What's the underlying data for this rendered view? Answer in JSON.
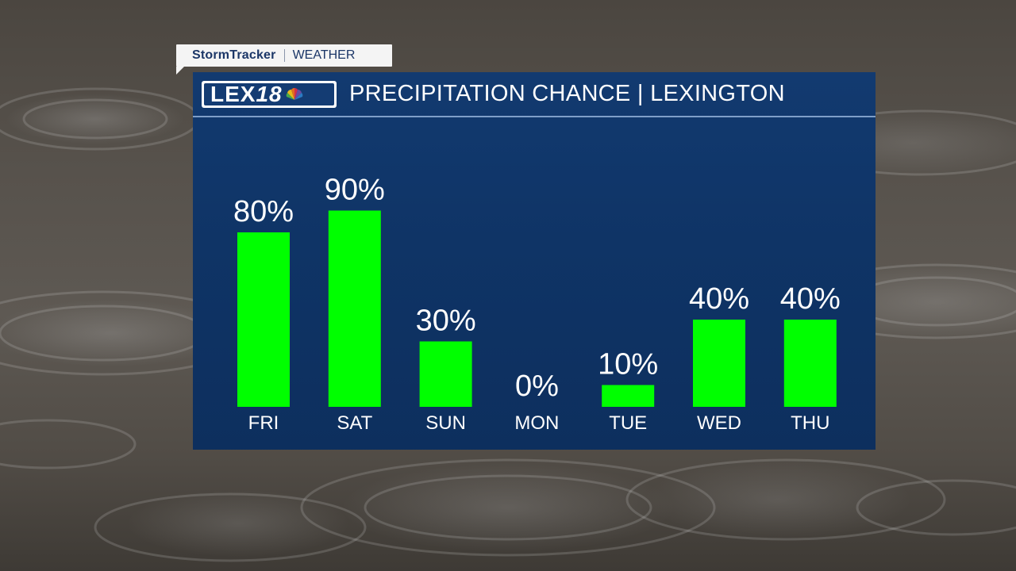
{
  "brand": {
    "name": "StormTracker",
    "section": "WEATHER"
  },
  "logo": {
    "text": "LEX",
    "number": "18"
  },
  "panel": {
    "title": "PRECIPITATION CHANCE | LEXINGTON"
  },
  "chart_data": {
    "type": "bar",
    "title": "PRECIPITATION CHANCE | LEXINGTON",
    "categories": [
      "FRI",
      "SAT",
      "SUN",
      "MON",
      "TUE",
      "WED",
      "THU"
    ],
    "values": [
      80,
      90,
      30,
      0,
      10,
      40,
      40
    ],
    "value_labels": [
      "80%",
      "90%",
      "30%",
      "0%",
      "10%",
      "40%",
      "40%"
    ],
    "xlabel": "",
    "ylabel": "",
    "ylim": [
      0,
      100
    ],
    "grid": false,
    "legend": "none",
    "colors": {
      "bar": "#00ff00",
      "label": "#ffffff",
      "panel": "#0f3466"
    }
  }
}
